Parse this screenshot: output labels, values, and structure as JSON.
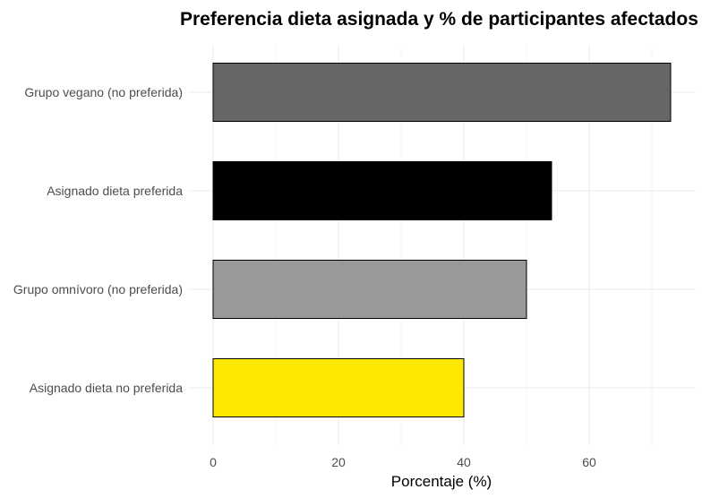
{
  "chart_data": {
    "type": "bar",
    "orientation": "horizontal",
    "title": "Preferencia dieta asignada y % de participantes afectados",
    "xlabel": "Porcentaje (%)",
    "ylabel": "",
    "xlim": [
      0,
      76
    ],
    "xticks": [
      0,
      20,
      40,
      60
    ],
    "grid": true,
    "categories": [
      "Grupo vegano (no preferida)",
      "Asignado dieta preferida",
      "Grupo omnívoro (no preferida)",
      "Asignado dieta no preferida"
    ],
    "values": [
      73,
      54,
      50,
      40
    ],
    "colors": [
      "#666666",
      "#000000",
      "#999999",
      "#ffe800"
    ]
  }
}
